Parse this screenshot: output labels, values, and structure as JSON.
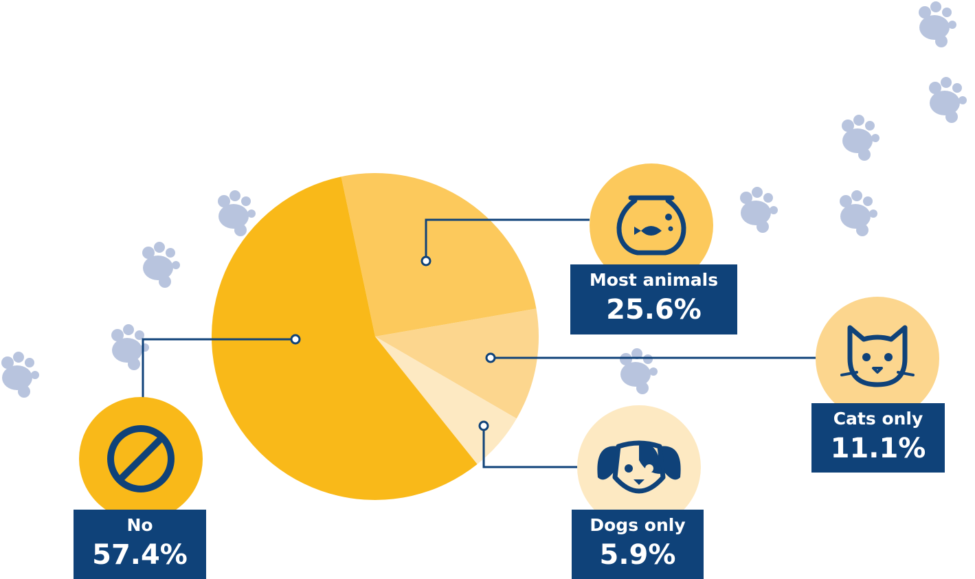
{
  "chart_data": {
    "type": "pie",
    "categories": [
      "Most animals",
      "Cats only",
      "Dogs only",
      "No"
    ],
    "values": [
      25.6,
      11.1,
      5.9,
      57.4
    ],
    "value_labels": [
      "25.6%",
      "11.1%",
      "5.9%",
      "57.4%"
    ],
    "colors": [
      "#fcc95c",
      "#fcd68e",
      "#fde9c2",
      "#f9b919"
    ]
  }
}
